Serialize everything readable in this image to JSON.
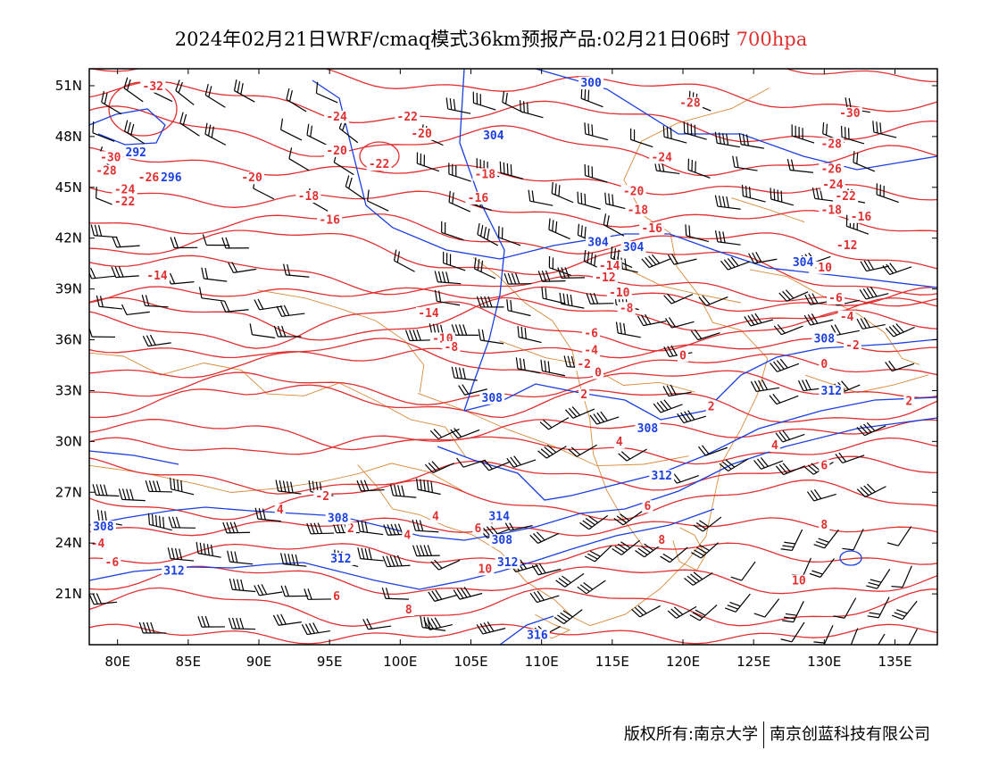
{
  "title": {
    "text": "2024年02月21日WRF/cmaq模式36km预报产品:02月21日06时",
    "level": "700hpa",
    "level_color": "#e03030"
  },
  "footer": {
    "copyright": "版权所有:南京大学",
    "company": "南京创蓝科技有限公司"
  },
  "map": {
    "lon_range": [
      78,
      138
    ],
    "lat_range": [
      18,
      52
    ],
    "lon_ticks": [
      "80E",
      "85E",
      "90E",
      "95E",
      "100E",
      "105E",
      "110E",
      "115E",
      "120E",
      "125E",
      "130E",
      "135E"
    ],
    "lat_ticks": [
      "51N",
      "48N",
      "45N",
      "42N",
      "39N",
      "36N",
      "33N",
      "30N",
      "27N",
      "24N",
      "21N"
    ],
    "colors": {
      "temperature": "#e03030",
      "geopotential": "#1a3fe0",
      "boundary": "#d98a3a",
      "wind": "#000000"
    },
    "temperature_labels": [
      {
        "text": "-32",
        "lon": 82.5,
        "lat": 50.8
      },
      {
        "text": "-30",
        "lon": 79.5,
        "lat": 46.6
      },
      {
        "text": "-28",
        "lon": 79.2,
        "lat": 45.8
      },
      {
        "text": "-26",
        "lon": 82.2,
        "lat": 45.4
      },
      {
        "text": "-24",
        "lon": 80.5,
        "lat": 44.7
      },
      {
        "text": "-22",
        "lon": 80.5,
        "lat": 44.0
      },
      {
        "text": "-24",
        "lon": 95.5,
        "lat": 49.0
      },
      {
        "text": "-22",
        "lon": 100.5,
        "lat": 49.0
      },
      {
        "text": "-20",
        "lon": 101.5,
        "lat": 48.0
      },
      {
        "text": "-20",
        "lon": 95.5,
        "lat": 47.0
      },
      {
        "text": "-22",
        "lon": 98.5,
        "lat": 46.2
      },
      {
        "text": "-20",
        "lon": 89.5,
        "lat": 45.4
      },
      {
        "text": "-18",
        "lon": 93.5,
        "lat": 44.3
      },
      {
        "text": "-16",
        "lon": 95.0,
        "lat": 42.9
      },
      {
        "text": "-18",
        "lon": 106.0,
        "lat": 45.6
      },
      {
        "text": "-16",
        "lon": 105.5,
        "lat": 44.2
      },
      {
        "text": "-14",
        "lon": 82.8,
        "lat": 39.6
      },
      {
        "text": "-14",
        "lon": 102.0,
        "lat": 37.4
      },
      {
        "text": "-12",
        "lon": 114.5,
        "lat": 39.5
      },
      {
        "text": "-14",
        "lon": 114.8,
        "lat": 40.2
      },
      {
        "text": "-10",
        "lon": 115.5,
        "lat": 38.6
      },
      {
        "text": "-8",
        "lon": 116.0,
        "lat": 37.7
      },
      {
        "text": "-10",
        "lon": 103.0,
        "lat": 35.9
      },
      {
        "text": "-8",
        "lon": 103.6,
        "lat": 35.4
      },
      {
        "text": "-6",
        "lon": 113.5,
        "lat": 36.2
      },
      {
        "text": "-4",
        "lon": 113.5,
        "lat": 35.2
      },
      {
        "text": "-2",
        "lon": 113.0,
        "lat": 34.4
      },
      {
        "text": "0",
        "lon": 114.0,
        "lat": 33.9
      },
      {
        "text": "0",
        "lon": 120.0,
        "lat": 34.9
      },
      {
        "text": "2",
        "lon": 113.0,
        "lat": 32.6
      },
      {
        "text": "2",
        "lon": 122.0,
        "lat": 31.9
      },
      {
        "text": "-28",
        "lon": 120.5,
        "lat": 49.8
      },
      {
        "text": "-24",
        "lon": 118.5,
        "lat": 46.6
      },
      {
        "text": "-20",
        "lon": 116.5,
        "lat": 44.6
      },
      {
        "text": "-18",
        "lon": 116.8,
        "lat": 43.5
      },
      {
        "text": "-16",
        "lon": 117.8,
        "lat": 42.4
      },
      {
        "text": "-30",
        "lon": 131.8,
        "lat": 49.2
      },
      {
        "text": "-28",
        "lon": 130.5,
        "lat": 47.4
      },
      {
        "text": "-26",
        "lon": 130.5,
        "lat": 45.9
      },
      {
        "text": "-24",
        "lon": 130.6,
        "lat": 45.0
      },
      {
        "text": "-22",
        "lon": 131.5,
        "lat": 44.3
      },
      {
        "text": "-18",
        "lon": 130.5,
        "lat": 43.5
      },
      {
        "text": "-16",
        "lon": 132.6,
        "lat": 43.1
      },
      {
        "text": "-12",
        "lon": 131.6,
        "lat": 41.4
      },
      {
        "text": "-10",
        "lon": 129.8,
        "lat": 40.1
      },
      {
        "text": "-6",
        "lon": 130.8,
        "lat": 38.3
      },
      {
        "text": "-4",
        "lon": 131.6,
        "lat": 37.2
      },
      {
        "text": "-2",
        "lon": 132.0,
        "lat": 35.5
      },
      {
        "text": "0",
        "lon": 130.0,
        "lat": 34.4
      },
      {
        "text": "2",
        "lon": 136.0,
        "lat": 32.2
      },
      {
        "text": "-2",
        "lon": 94.5,
        "lat": 26.6
      },
      {
        "text": "4",
        "lon": 91.5,
        "lat": 25.8
      },
      {
        "text": "2",
        "lon": 96.5,
        "lat": 24.7
      },
      {
        "text": "-4",
        "lon": 78.6,
        "lat": 23.8
      },
      {
        "text": "-6",
        "lon": 79.6,
        "lat": 22.7
      },
      {
        "text": "4",
        "lon": 102.5,
        "lat": 25.4
      },
      {
        "text": "4",
        "lon": 100.5,
        "lat": 24.3
      },
      {
        "text": "6",
        "lon": 105.5,
        "lat": 24.7
      },
      {
        "text": "4",
        "lon": 106.4,
        "lat": 25.2
      },
      {
        "text": "10",
        "lon": 106.0,
        "lat": 22.3
      },
      {
        "text": "6",
        "lon": 95.5,
        "lat": 20.7
      },
      {
        "text": "8",
        "lon": 100.6,
        "lat": 19.9
      },
      {
        "text": "4",
        "lon": 115.5,
        "lat": 29.8
      },
      {
        "text": "6",
        "lon": 117.5,
        "lat": 26.0
      },
      {
        "text": "8",
        "lon": 118.5,
        "lat": 24.0
      },
      {
        "text": "4",
        "lon": 126.5,
        "lat": 29.6
      },
      {
        "text": "6",
        "lon": 130.0,
        "lat": 28.4
      },
      {
        "text": "8",
        "lon": 130.0,
        "lat": 24.9
      },
      {
        "text": "10",
        "lon": 128.2,
        "lat": 21.6
      }
    ],
    "geopotential_labels": [
      {
        "text": "300",
        "lon": 113.5,
        "lat": 51.0
      },
      {
        "text": "292",
        "lon": 81.3,
        "lat": 46.9
      },
      {
        "text": "296",
        "lon": 83.8,
        "lat": 45.4
      },
      {
        "text": "304",
        "lon": 106.6,
        "lat": 47.9
      },
      {
        "text": "304",
        "lon": 114.0,
        "lat": 41.6
      },
      {
        "text": "304",
        "lon": 116.5,
        "lat": 41.3
      },
      {
        "text": "304",
        "lon": 128.5,
        "lat": 40.4
      },
      {
        "text": "308",
        "lon": 130.0,
        "lat": 35.9
      },
      {
        "text": "308",
        "lon": 106.5,
        "lat": 32.4
      },
      {
        "text": "308",
        "lon": 117.5,
        "lat": 30.6
      },
      {
        "text": "312",
        "lon": 130.5,
        "lat": 32.8
      },
      {
        "text": "312",
        "lon": 118.5,
        "lat": 27.8
      },
      {
        "text": "314",
        "lon": 107.0,
        "lat": 25.4
      },
      {
        "text": "308",
        "lon": 107.2,
        "lat": 24.0
      },
      {
        "text": "312",
        "lon": 107.6,
        "lat": 22.7
      },
      {
        "text": "308",
        "lon": 95.6,
        "lat": 25.3
      },
      {
        "text": "312",
        "lon": 95.8,
        "lat": 22.9
      },
      {
        "text": "308",
        "lon": 79.0,
        "lat": 24.8
      },
      {
        "text": "312",
        "lon": 84.0,
        "lat": 22.2
      },
      {
        "text": "316",
        "lon": 109.7,
        "lat": 18.4
      }
    ],
    "wind_zones": [
      {
        "lon": [
          80,
          100
        ],
        "lat": [
          44,
          51
        ],
        "dir": 300,
        "barbs": 2
      },
      {
        "lon": [
          101,
          117
        ],
        "lat": [
          40,
          51
        ],
        "dir": 290,
        "barbs": 3
      },
      {
        "lon": [
          118,
          137
        ],
        "lat": [
          42,
          51
        ],
        "dir": 285,
        "barbs": 3
      },
      {
        "lon": [
          80,
          95
        ],
        "lat": [
          36,
          43
        ],
        "dir": 270,
        "barbs": 2
      },
      {
        "lon": [
          102,
          118
        ],
        "lat": [
          34,
          40
        ],
        "dir": 275,
        "barbs": 3
      },
      {
        "lon": [
          119,
          137
        ],
        "lat": [
          33,
          41
        ],
        "dir": 255,
        "barbs": 3
      },
      {
        "lon": [
          112,
          124
        ],
        "lat": [
          28,
          33
        ],
        "dir": 245,
        "barbs": 3
      },
      {
        "lon": [
          125,
          137
        ],
        "lat": [
          27,
          32
        ],
        "dir": 245,
        "barbs": 3
      },
      {
        "lon": [
          104,
          111
        ],
        "lat": [
          27,
          33
        ],
        "dir": 250,
        "barbs": 2
      },
      {
        "lon": [
          80,
          103
        ],
        "lat": [
          23,
          28
        ],
        "dir": 275,
        "barbs": 4
      },
      {
        "lon": [
          104,
          112
        ],
        "lat": [
          19,
          26
        ],
        "dir": 250,
        "barbs": 3
      },
      {
        "lon": [
          113,
          124
        ],
        "lat": [
          20,
          26
        ],
        "dir": 235,
        "barbs": 3
      },
      {
        "lon": [
          125,
          137
        ],
        "lat": [
          19,
          26
        ],
        "dir": 210,
        "barbs": 2
      },
      {
        "lon": [
          80,
          103
        ],
        "lat": [
          19,
          22
        ],
        "dir": 270,
        "barbs": 3
      }
    ]
  }
}
